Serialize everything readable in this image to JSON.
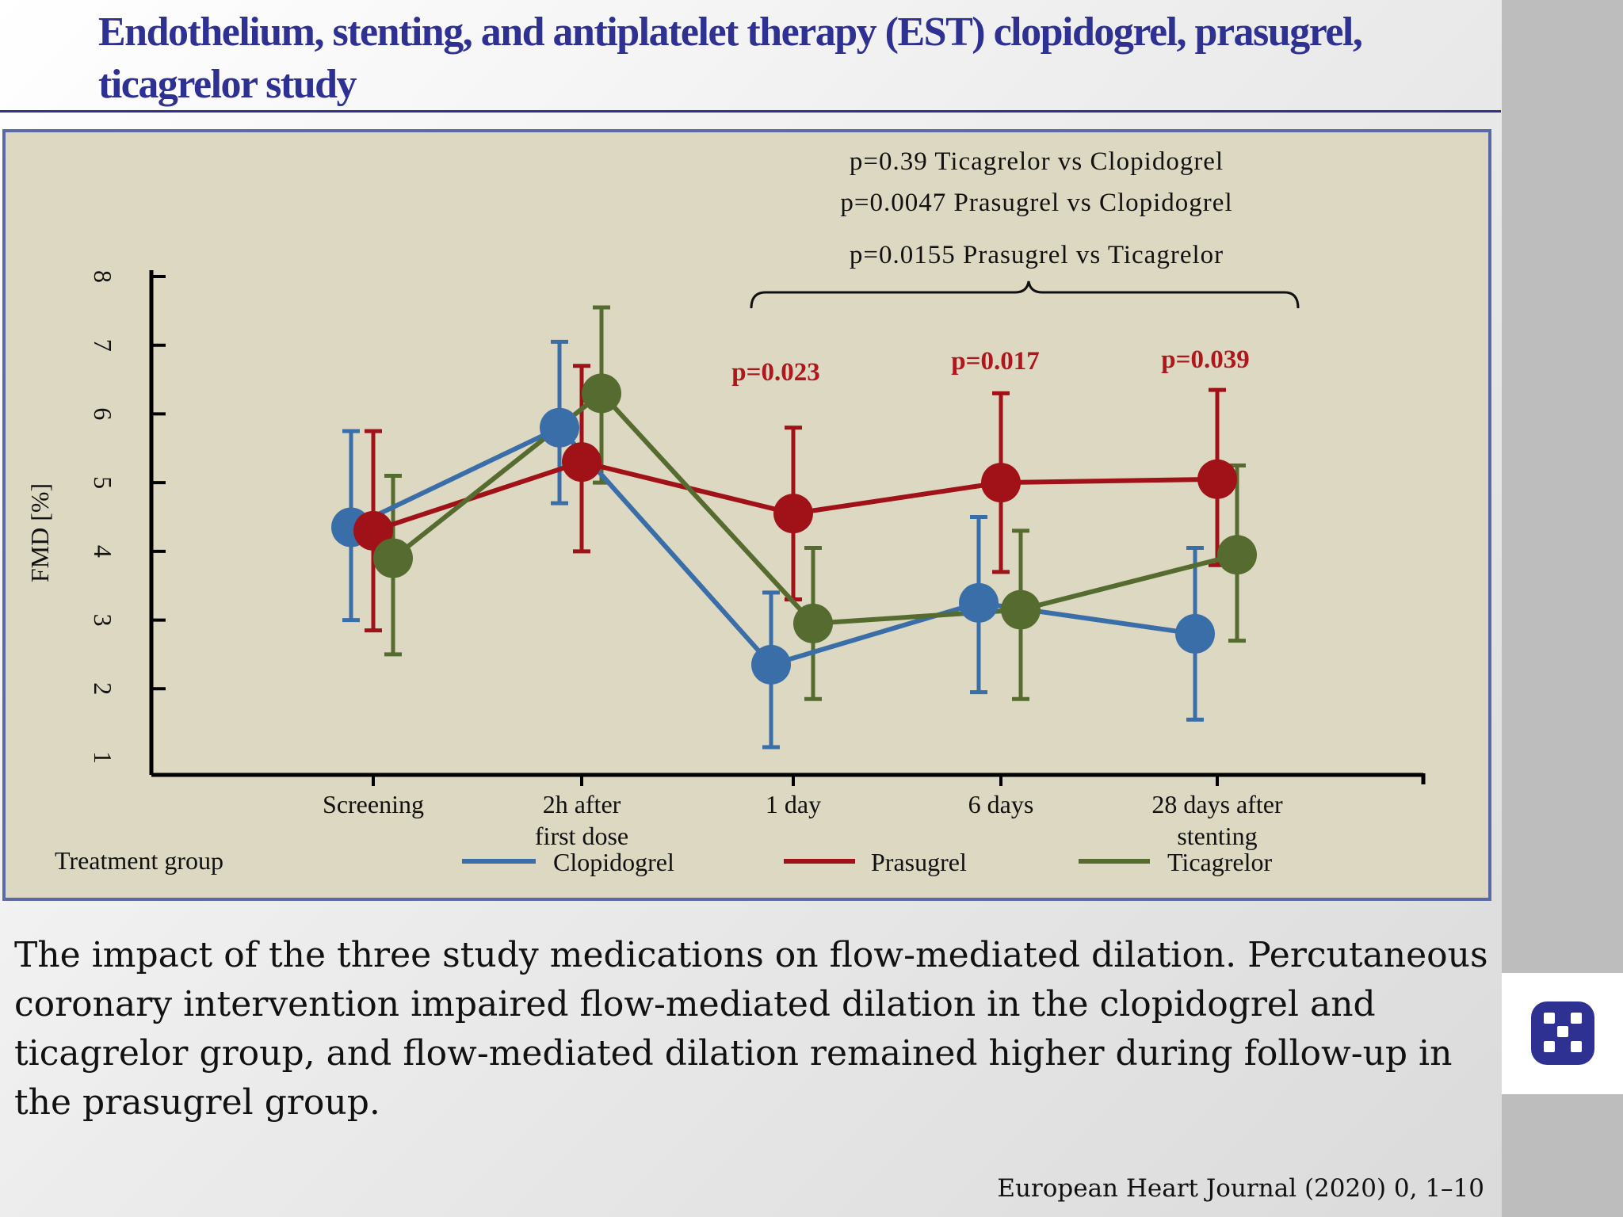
{
  "slide": {
    "title": "Endothelium, stenting, and antiplatelet therapy (EST)  clopidogrel, prasugrel, ticagrelor study",
    "caption": "The impact of the three study medications on flow-mediated dilation. Percutaneous coronary intervention impaired flow-mediated dilation in the clopidogrel and ticagrelor group, and flow-mediated dilation remained higher during follow-up in the prasugrel group.",
    "citation": "European Heart Journal (2020) 0, 1–10",
    "logo_icon": "checker-square-icon"
  },
  "colors": {
    "title": "#2e3192",
    "chart_bg": "#ddd8c2",
    "clopidogrel": "#3a6ea8",
    "prasugrel": "#a01218",
    "ticagrelor": "#556b2f",
    "annotation_red": "#b0161c"
  },
  "chart_data": {
    "type": "line",
    "ylabel": "FMD [%]",
    "xlabel": "",
    "ylim": [
      1,
      8
    ],
    "yticks": [
      1,
      2,
      3,
      4,
      5,
      6,
      7,
      8
    ],
    "categories": [
      {
        "label1": "Screening",
        "label2": ""
      },
      {
        "label1": "2h after",
        "label2": "first dose"
      },
      {
        "label1": "1 day",
        "label2": ""
      },
      {
        "label1": "6 days",
        "label2": ""
      },
      {
        "label1": "28 days after",
        "label2": "stenting"
      }
    ],
    "series": [
      {
        "name": "Clopidogrel",
        "color": "#3a6ea8",
        "values": [
          4.35,
          5.8,
          2.35,
          3.25,
          2.8
        ],
        "err_low": [
          3.0,
          4.7,
          1.15,
          1.95,
          1.55
        ],
        "err_high": [
          5.75,
          7.05,
          3.4,
          4.5,
          4.05
        ]
      },
      {
        "name": "Prasugrel",
        "color": "#a01218",
        "values": [
          4.3,
          5.3,
          4.55,
          5.0,
          5.05
        ],
        "err_low": [
          2.85,
          4.0,
          3.3,
          3.7,
          3.8
        ],
        "err_high": [
          5.75,
          6.7,
          5.8,
          6.3,
          6.35
        ]
      },
      {
        "name": "Ticagrelor",
        "color": "#556b2f",
        "values": [
          3.9,
          6.3,
          2.95,
          3.15,
          3.95
        ],
        "err_low": [
          2.5,
          5.0,
          1.85,
          1.85,
          2.7
        ],
        "err_high": [
          5.1,
          7.55,
          4.05,
          4.3,
          5.25
        ]
      }
    ],
    "annotations": {
      "overall": [
        "p=0.39 Ticagrelor vs Clopidogrel",
        "p=0.0047 Prasugrel vs Clopidogrel",
        "p=0.0155 Prasugrel vs Ticagrelor"
      ],
      "per_timepoint": [
        {
          "category_index": 2,
          "text": "p=0.023"
        },
        {
          "category_index": 3,
          "text": "p=0.017"
        },
        {
          "category_index": 4,
          "text": "p=0.039"
        }
      ]
    },
    "legend": {
      "title": "Treatment group",
      "placement": "bottom"
    }
  }
}
